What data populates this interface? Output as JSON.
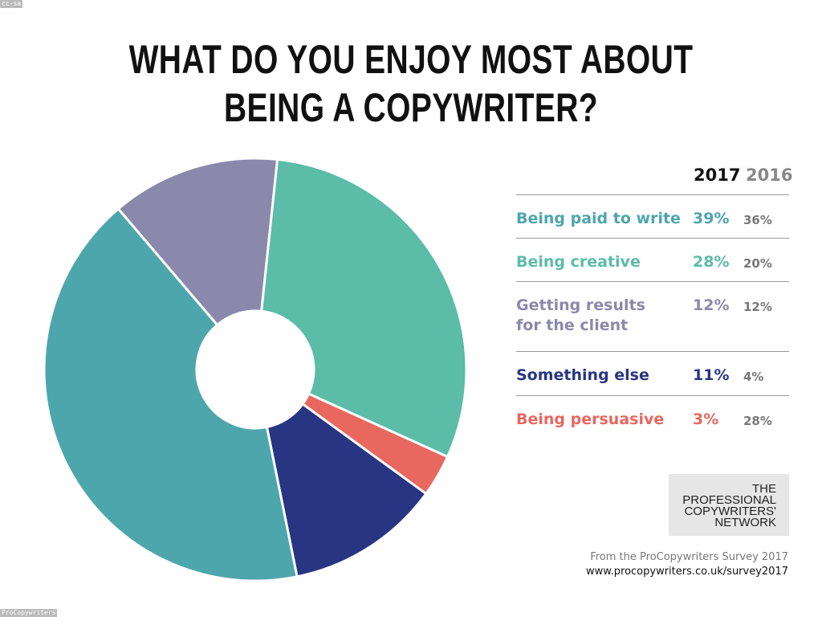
{
  "watermarks": {
    "top": "cc-sa",
    "bottom": "ProCopywriters"
  },
  "chart_data": {
    "type": "pie",
    "donut": true,
    "title": "WHAT DO YOU ENJOY MOST ABOUT BEING A COPYWRITER?",
    "title_lines": [
      "WHAT DO YOU ENJOY MOST ABOUT",
      "BEING A COPYWRITER?"
    ],
    "columns": [
      "2017",
      "2016"
    ],
    "categories": [
      "Being paid to write",
      "Being creative",
      "Getting results for the client",
      "Something else",
      "Being persuasive"
    ],
    "label_lines": [
      [
        "Being paid to write"
      ],
      [
        "Being creative"
      ],
      [
        "Getting results",
        "for the client"
      ],
      [
        "Something else"
      ],
      [
        "Being persuasive"
      ]
    ],
    "series": [
      {
        "name": "2017",
        "values": [
          39,
          28,
          12,
          11,
          3
        ],
        "labels": [
          "39%",
          "28%",
          "12%",
          "11%",
          "3%"
        ]
      },
      {
        "name": "2016",
        "values": [
          36,
          20,
          12,
          4,
          28
        ],
        "labels": [
          "36%",
          "20%",
          "12%",
          "4%",
          "28%"
        ]
      }
    ],
    "colors": [
      "#4ea6ad",
      "#5bbca8",
      "#8a89ab",
      "#283583",
      "#e8675f"
    ],
    "pie_order_clockwise": [
      "Being creative",
      "Being persuasive",
      "Something else",
      "Being paid to write",
      "Getting results for the client"
    ],
    "legend": "right"
  },
  "logo": {
    "lines": [
      "THE",
      "PROFESSIONAL",
      "COPYWRITERS'",
      "NETWORK"
    ]
  },
  "source": {
    "line1": "From the ProCopywriters Survey 2017",
    "line2": "www.procopywriters.co.uk/survey2017"
  }
}
